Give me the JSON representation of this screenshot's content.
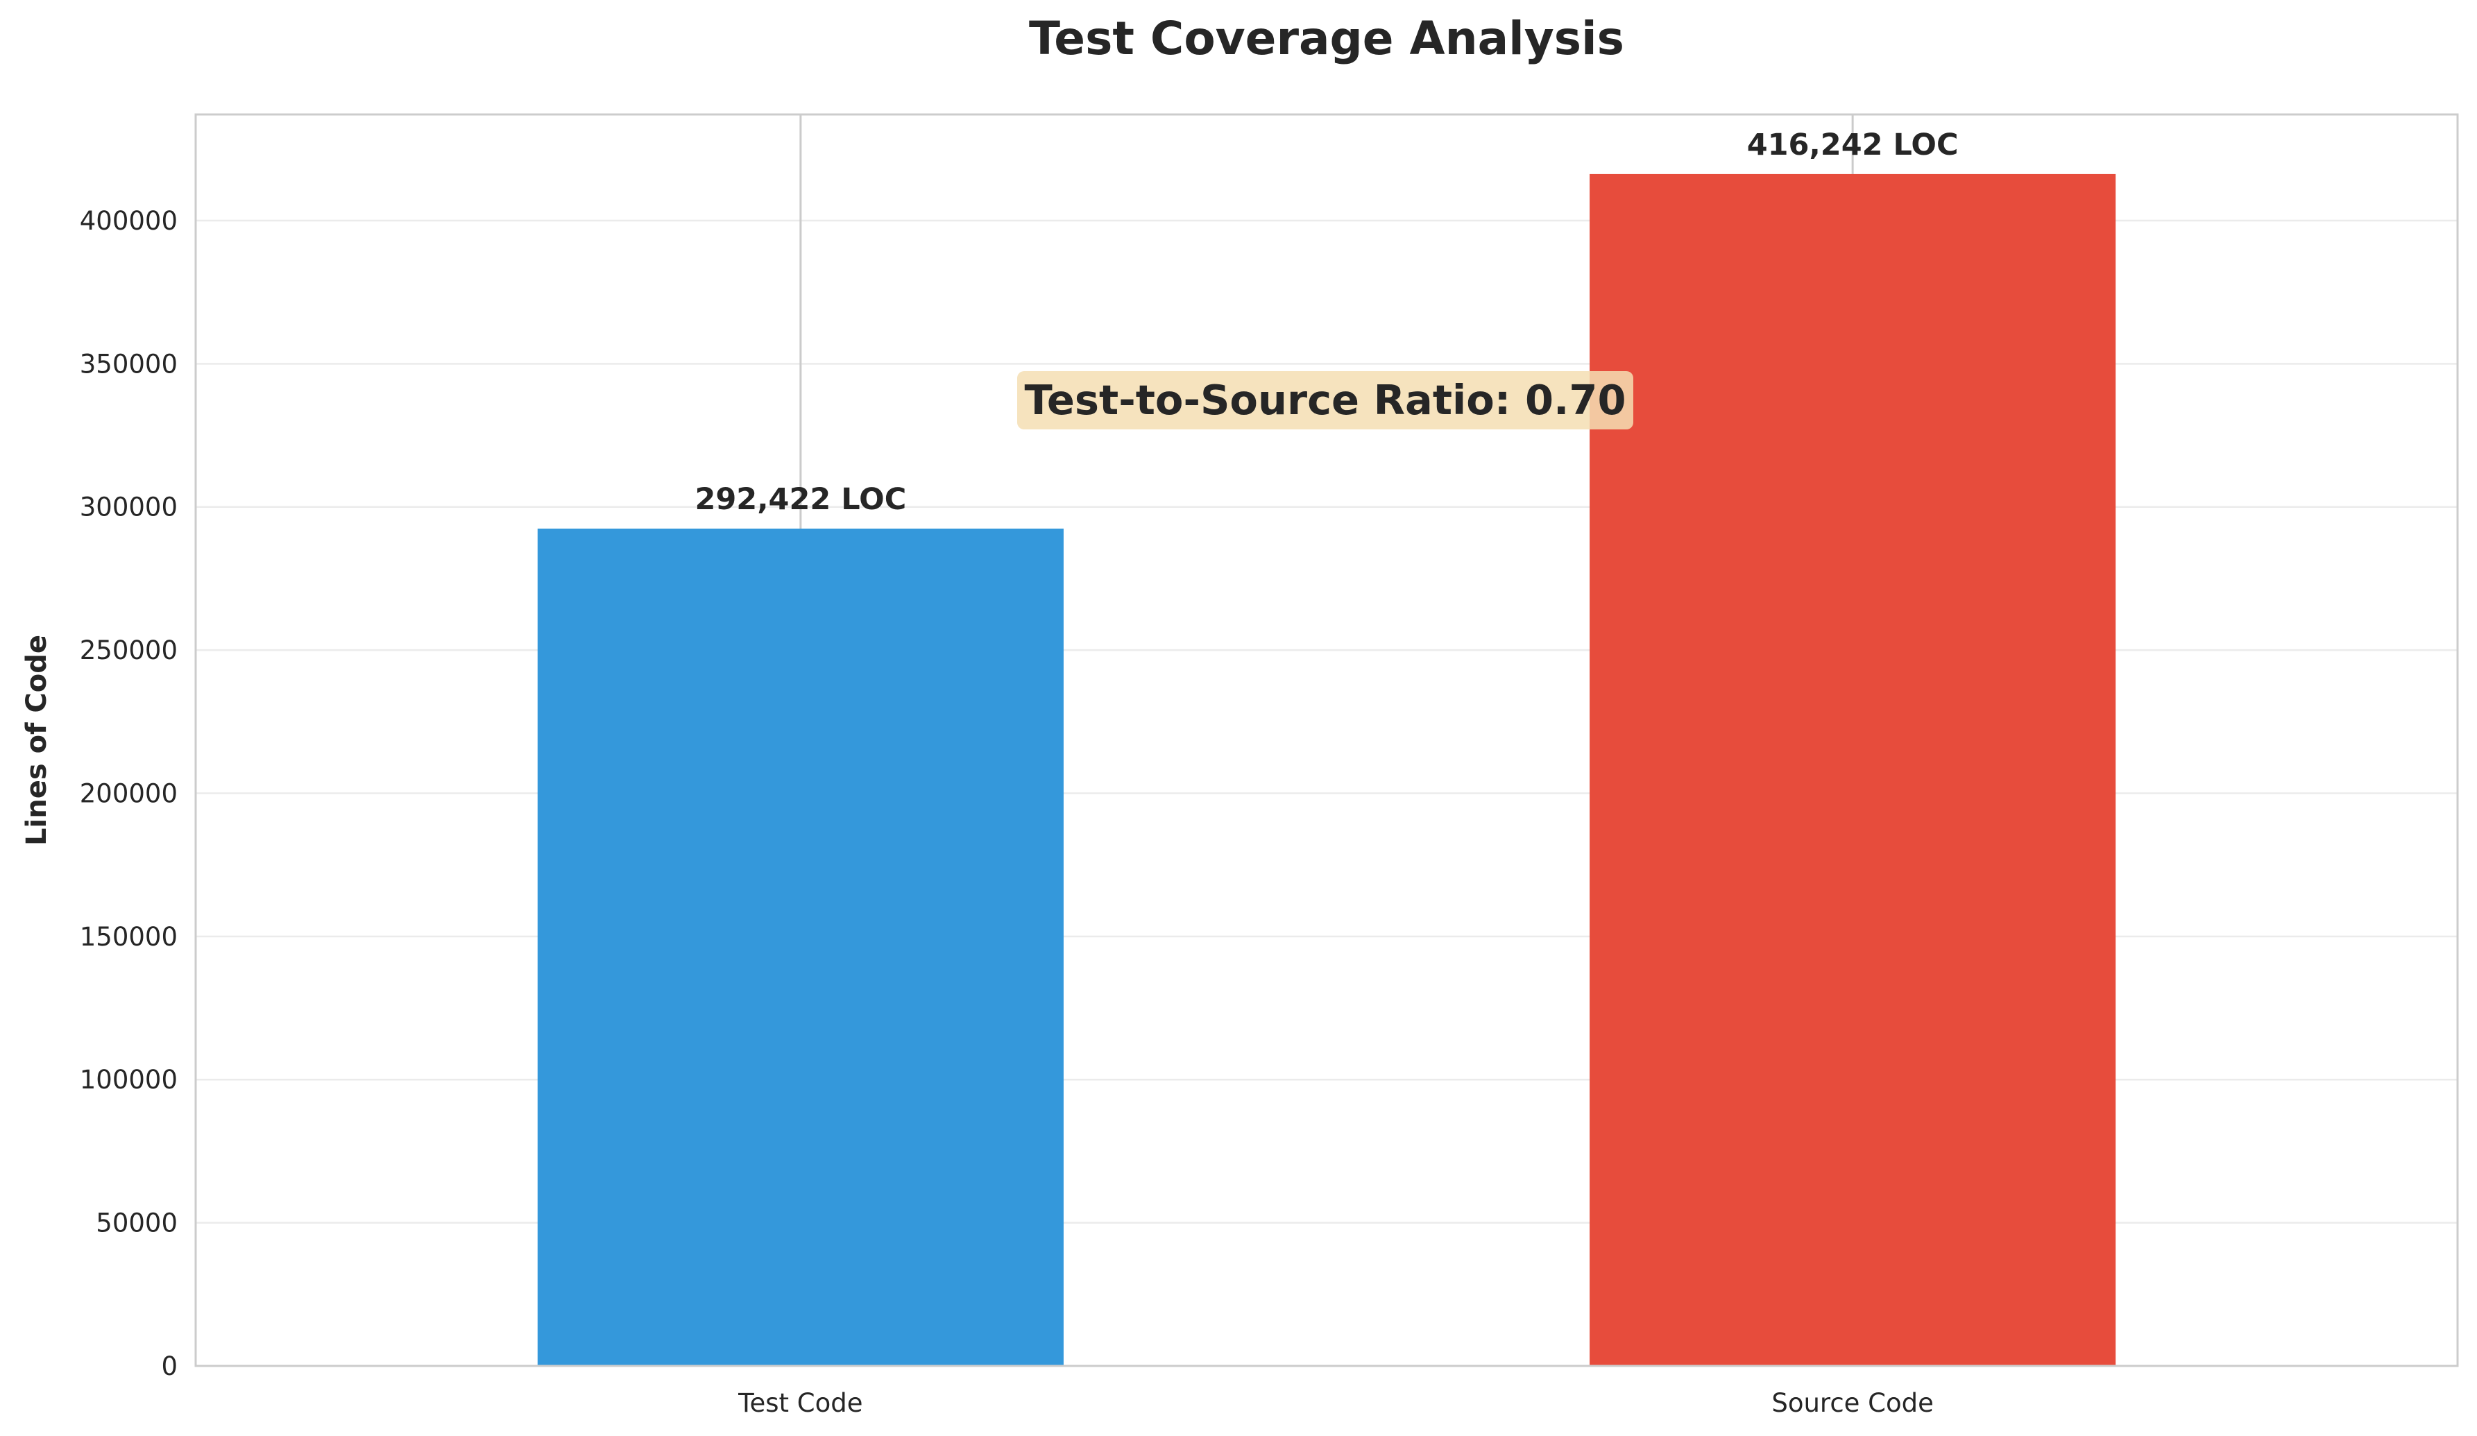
{
  "chart_data": {
    "type": "bar",
    "title": "Test Coverage Analysis",
    "xlabel": "",
    "ylabel": "Lines of Code",
    "categories": [
      "Test Code",
      "Source Code"
    ],
    "values": [
      292422,
      416242
    ],
    "value_labels": [
      "292,422 LOC",
      "416,242 LOC"
    ],
    "colors": [
      "#3498db",
      "#e74c3c"
    ],
    "ylim": [
      0,
      437054
    ],
    "yticks": [
      0,
      50000,
      100000,
      150000,
      200000,
      250000,
      300000,
      350000,
      400000
    ],
    "ytick_labels": [
      "0",
      "50000",
      "100000",
      "150000",
      "200000",
      "250000",
      "300000",
      "350000",
      "400000"
    ],
    "grid": "horizontal",
    "annotation": {
      "text": "Test-to-Source Ratio: 0.70",
      "background": "#f5deb3"
    }
  }
}
